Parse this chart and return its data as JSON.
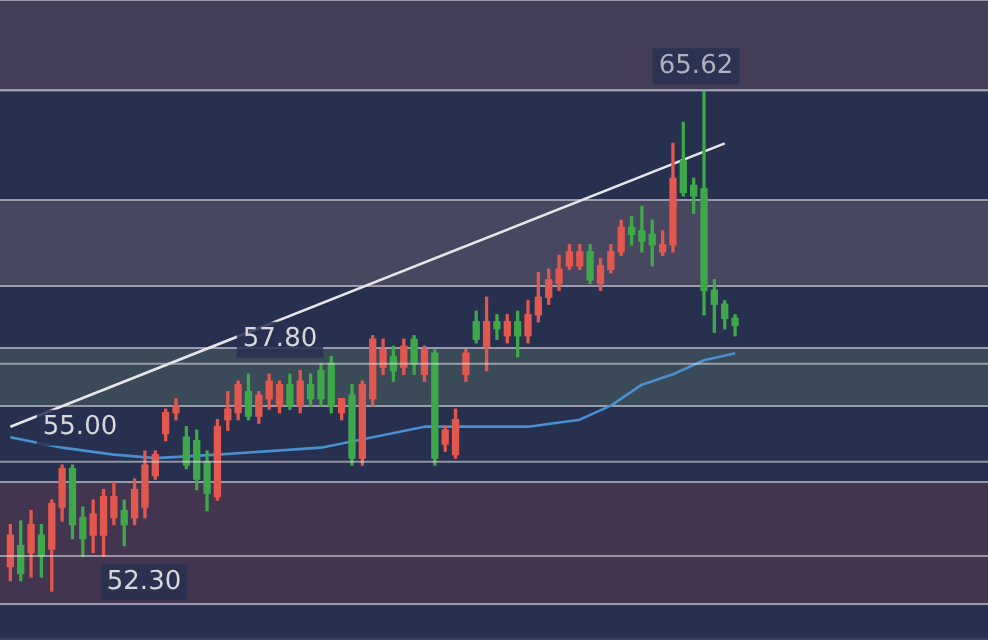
{
  "chart_data": {
    "type": "candlestick",
    "categories": [
      null,
      null,
      null,
      null,
      null,
      null,
      null,
      null,
      null,
      null,
      null,
      null,
      null,
      null,
      null,
      null,
      null,
      null,
      null,
      null,
      null,
      null,
      null,
      null,
      null,
      null,
      null,
      null,
      null,
      null,
      null,
      null,
      null,
      null,
      null,
      null,
      null,
      null,
      null,
      null,
      null,
      null,
      null,
      null,
      null,
      null,
      null,
      null,
      null,
      null,
      null,
      null,
      null,
      null,
      null,
      null,
      null,
      null,
      null,
      null,
      null,
      null,
      null,
      null,
      null,
      null,
      null,
      null,
      null,
      null,
      null
    ],
    "ohlc": [
      [
        52.0,
        53.2,
        51.6,
        52.9
      ],
      [
        52.6,
        53.3,
        51.6,
        51.8
      ],
      [
        52.4,
        53.6,
        51.7,
        53.2
      ],
      [
        52.9,
        53.2,
        51.7,
        52.3
      ],
      [
        52.5,
        53.9,
        51.3,
        53.8
      ],
      [
        53.7,
        54.9,
        53.3,
        54.8
      ],
      [
        54.8,
        54.9,
        52.8,
        53.2
      ],
      [
        53.4,
        53.7,
        52.3,
        52.8
      ],
      [
        52.9,
        53.9,
        52.4,
        53.5
      ],
      [
        52.9,
        54.2,
        52.3,
        54.0
      ],
      [
        53.4,
        54.4,
        53.2,
        54.0
      ],
      [
        53.6,
        53.9,
        52.6,
        53.2
      ],
      [
        53.4,
        54.5,
        53.2,
        54.2
      ],
      [
        53.7,
        55.3,
        53.4,
        54.9
      ],
      [
        54.6,
        55.3,
        54.5,
        55.2
      ],
      [
        55.8,
        56.5,
        55.6,
        56.4
      ],
      [
        56.4,
        56.8,
        56.2,
        56.6
      ],
      [
        55.7,
        56.0,
        54.8,
        54.9
      ],
      [
        55.6,
        55.9,
        54.2,
        54.5
      ],
      [
        55.0,
        55.3,
        53.6,
        54.1
      ],
      [
        54.0,
        56.2,
        53.9,
        56.0
      ],
      [
        56.2,
        57.0,
        55.9,
        56.5
      ],
      [
        56.4,
        57.3,
        56.2,
        57.2
      ],
      [
        57.0,
        57.5,
        56.2,
        56.3
      ],
      [
        56.3,
        57.0,
        56.1,
        56.9
      ],
      [
        56.8,
        57.5,
        56.5,
        57.3
      ],
      [
        56.6,
        57.3,
        56.4,
        57.2
      ],
      [
        57.2,
        57.5,
        56.5,
        56.6
      ],
      [
        56.6,
        57.6,
        56.4,
        57.3
      ],
      [
        57.2,
        57.5,
        56.6,
        56.8
      ],
      [
        57.6,
        57.8,
        56.6,
        56.8
      ],
      [
        57.8,
        58.0,
        56.4,
        56.6
      ],
      [
        56.4,
        56.8,
        56.2,
        56.8
      ],
      [
        56.9,
        57.2,
        54.9,
        55.1
      ],
      [
        55.1,
        57.3,
        54.9,
        57.2
      ],
      [
        56.8,
        58.6,
        56.6,
        58.5
      ],
      [
        57.7,
        58.5,
        57.5,
        58.2
      ],
      [
        58.0,
        58.3,
        57.3,
        57.6
      ],
      [
        57.7,
        58.5,
        57.5,
        58.3
      ],
      [
        58.5,
        58.6,
        57.5,
        57.8
      ],
      [
        57.5,
        58.3,
        57.3,
        58.2
      ],
      [
        58.1,
        58.2,
        54.9,
        55.1
      ],
      [
        55.5,
        56.0,
        55.3,
        55.9
      ],
      [
        55.2,
        56.5,
        55.1,
        56.2
      ],
      [
        57.5,
        58.2,
        57.3,
        58.1
      ],
      [
        59.0,
        59.3,
        58.4,
        58.5
      ],
      [
        58.3,
        59.7,
        57.6,
        59.0
      ],
      [
        59.0,
        59.2,
        58.5,
        58.8
      ],
      [
        58.6,
        59.2,
        58.4,
        59.0
      ],
      [
        59.0,
        59.3,
        58.0,
        58.6
      ],
      [
        58.6,
        59.6,
        58.4,
        59.2
      ],
      [
        59.2,
        60.4,
        59.0,
        59.7
      ],
      [
        59.7,
        60.5,
        59.5,
        60.2
      ],
      [
        60.1,
        60.9,
        59.9,
        60.5
      ],
      [
        60.6,
        61.2,
        60.5,
        61.0
      ],
      [
        60.6,
        61.2,
        60.5,
        61.0
      ],
      [
        61.0,
        61.2,
        60.1,
        60.2
      ],
      [
        60.1,
        60.8,
        59.9,
        60.6
      ],
      [
        60.5,
        61.2,
        60.4,
        61.0
      ],
      [
        61.0,
        61.9,
        60.9,
        61.7
      ],
      [
        61.7,
        62.0,
        61.2,
        61.5
      ],
      [
        61.6,
        62.3,
        61.0,
        61.3
      ],
      [
        61.5,
        61.9,
        60.6,
        61.2
      ],
      [
        61.0,
        61.6,
        60.9,
        61.2
      ],
      [
        61.2,
        64.1,
        61.0,
        63.1
      ],
      [
        63.6,
        64.7,
        62.6,
        62.7
      ],
      [
        62.9,
        63.1,
        62.1,
        62.6
      ],
      [
        62.8,
        65.62,
        59.2,
        59.9
      ],
      [
        59.9,
        60.2,
        58.7,
        59.5
      ],
      [
        59.5,
        59.6,
        58.8,
        59.1
      ],
      [
        59.1,
        59.2,
        58.6,
        58.9
      ]
    ],
    "colors": [
      "#e2584f",
      "#3ea84a",
      "#e2584f",
      "#3ea84a",
      "#e2584f",
      "#e2584f",
      "#3ea84a",
      "#3ea84a",
      "#e2584f",
      "#e2584f",
      "#e2584f",
      "#3ea84a",
      "#e2584f",
      "#e2584f",
      "#e2584f",
      "#e2584f",
      "#e2584f",
      "#3ea84a",
      "#3ea84a",
      "#3ea84a",
      "#e2584f",
      "#e2584f",
      "#e2584f",
      "#3ea84a",
      "#e2584f",
      "#e2584f",
      "#e2584f",
      "#3ea84a",
      "#e2584f",
      "#3ea84a",
      "#3ea84a",
      "#3ea84a",
      "#e2584f",
      "#3ea84a",
      "#e2584f",
      "#e2584f",
      "#e2584f",
      "#3ea84a",
      "#e2584f",
      "#3ea84a",
      "#e2584f",
      "#3ea84a",
      "#e2584f",
      "#e2584f",
      "#e2584f",
      "#3ea84a",
      "#e2584f",
      "#3ea84a",
      "#e2584f",
      "#3ea84a",
      "#e2584f",
      "#e2584f",
      "#e2584f",
      "#e2584f",
      "#e2584f",
      "#e2584f",
      "#3ea84a",
      "#e2584f",
      "#e2584f",
      "#e2584f",
      "#3ea84a",
      "#3ea84a",
      "#3ea84a",
      "#e2584f",
      "#e2584f",
      "#3ea84a",
      "#3ea84a",
      "#3ea84a",
      "#3ea84a",
      "#3ea84a",
      "#3ea84a"
    ],
    "series": [
      {
        "type": "line",
        "color": "#4a8fd0",
        "values": [
          55.7,
          null,
          null,
          null,
          null,
          55.4,
          null,
          null,
          null,
          null,
          55.2,
          null,
          null,
          null,
          55.1,
          null,
          null,
          null,
          null,
          null,
          55.2,
          null,
          null,
          null,
          null,
          55.3,
          null,
          null,
          null,
          null,
          55.4,
          null,
          null,
          null,
          null,
          55.7,
          null,
          null,
          null,
          null,
          56.0,
          null,
          null,
          null,
          null,
          56.0,
          null,
          null,
          null,
          null,
          56.0,
          null,
          null,
          null,
          null,
          56.2,
          null,
          null,
          56.6,
          null,
          null,
          57.2,
          null,
          null,
          57.5,
          null,
          null,
          57.9,
          null,
          null,
          58.1
        ]
      },
      {
        "type": "line",
        "color": "#e6e6e6",
        "values": [
          56.0,
          null,
          null,
          null,
          null,
          null,
          null,
          null,
          null,
          null,
          null,
          null,
          null,
          null,
          null,
          null,
          null,
          null,
          null,
          null,
          null,
          null,
          null,
          null,
          null,
          null,
          null,
          null,
          null,
          null,
          null,
          null,
          null,
          null,
          null,
          null,
          null,
          null,
          null,
          null,
          null,
          null,
          null,
          null,
          null,
          null,
          null,
          null,
          null,
          null,
          null,
          null,
          null,
          null,
          null,
          null,
          null,
          null,
          null,
          null,
          null,
          null,
          null,
          null,
          null,
          null,
          null,
          null,
          null,
          64.1,
          null
        ]
      }
    ],
    "ylim": [
      49.9,
      68.2
    ],
    "tick_labels": false,
    "bands": [
      {
        "axis": "y",
        "from": 65.62,
        "to": 68.2,
        "color": "#433d57"
      },
      {
        "axis": "y",
        "from": 60.02,
        "to": 62.48,
        "color": "#474860"
      },
      {
        "axis": "y",
        "from": 56.59,
        "to": 58.25,
        "color": "#3b4a58"
      },
      {
        "axis": "y",
        "from": 50.93,
        "to": 54.42,
        "color": "#433550"
      }
    ],
    "ref_lines": [
      {
        "axis": "y",
        "value": 55.0,
        "label": "55.00",
        "color": "#d8d8d8"
      },
      {
        "axis": "y",
        "value": 57.8,
        "label": "57.80",
        "color": "#d8d8d8"
      },
      {
        "axis": "y",
        "value": 52.3,
        "label": "52.30",
        "color": "#d8d8d8"
      },
      {
        "axis": "y",
        "value": 65.62,
        "label": "65.62",
        "color": "#b0b0c0"
      }
    ]
  }
}
